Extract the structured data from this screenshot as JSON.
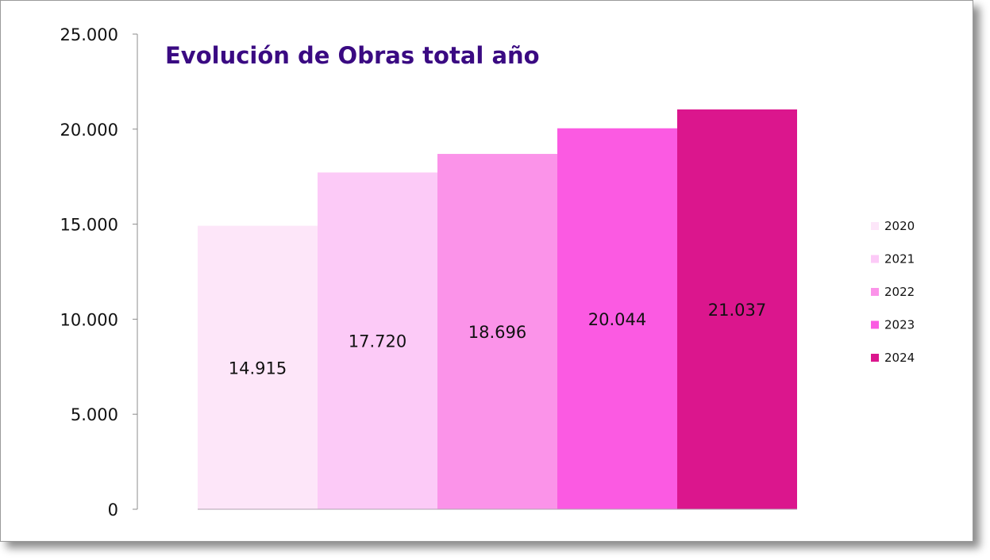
{
  "chart_data": {
    "type": "bar",
    "title": "Evolución de Obras total año",
    "xlabel": "",
    "ylabel": "",
    "ylim": [
      0,
      25000
    ],
    "yticks": [
      0,
      5000,
      10000,
      15000,
      20000,
      25000
    ],
    "ytick_labels": [
      "0",
      "5.000",
      "10.000",
      "15.000",
      "20.000",
      "25.000"
    ],
    "grid": false,
    "legend_position": "right",
    "series": [
      {
        "name": "2020",
        "value": 14915,
        "label": "14.915",
        "color": "#fde6f9"
      },
      {
        "name": "2021",
        "value": 17720,
        "label": "17.720",
        "color": "#fccaf7"
      },
      {
        "name": "2022",
        "value": 18696,
        "label": "18.696",
        "color": "#fb93e9"
      },
      {
        "name": "2023",
        "value": 20044,
        "label": "20.044",
        "color": "#fb5ae2"
      },
      {
        "name": "2024",
        "value": 21037,
        "label": "21.037",
        "color": "#db168d"
      }
    ]
  }
}
